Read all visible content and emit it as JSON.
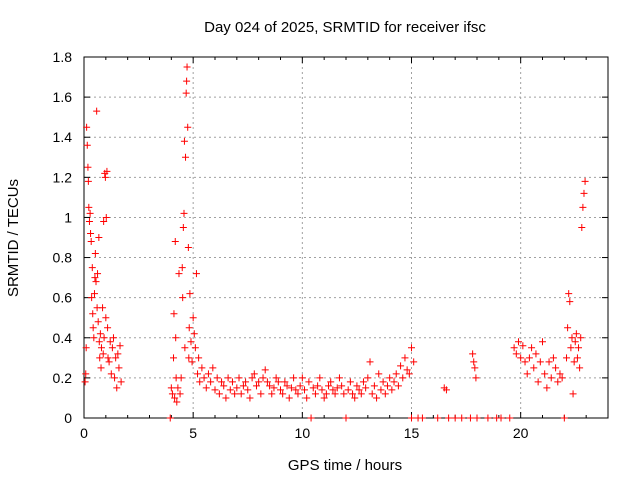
{
  "chart_data": {
    "type": "scatter",
    "title": "Day 024 of 2025, SRMTID for receiver ifsc",
    "xlabel": "GPS time / hours",
    "ylabel": "SRMTID / TECUs",
    "xlim": [
      0,
      24
    ],
    "ylim": [
      0,
      1.8
    ],
    "xticks": [
      0,
      5,
      10,
      15,
      20
    ],
    "xtick_labels": [
      "0",
      "5",
      "10",
      "15",
      "20"
    ],
    "yticks": [
      0,
      0.2,
      0.4,
      0.6,
      0.8,
      1,
      1.2,
      1.4,
      1.6,
      1.8
    ],
    "ytick_labels": [
      "0",
      "0.2",
      "0.4",
      "0.6",
      "0.8",
      "1",
      "1.2",
      "1.4",
      "1.6",
      "1.8"
    ],
    "grid": true,
    "marker": "+",
    "series": [
      {
        "name": "SRMTID",
        "color": "#ff0000",
        "points": [
          [
            0.05,
            0.18
          ],
          [
            0.08,
            0.22
          ],
          [
            0.1,
            0.35
          ],
          [
            0.12,
            1.45
          ],
          [
            0.15,
            1.36
          ],
          [
            0.18,
            1.25
          ],
          [
            0.2,
            1.18
          ],
          [
            0.22,
            1.05
          ],
          [
            0.25,
            0.98
          ],
          [
            0.28,
            1.02
          ],
          [
            0.3,
            0.92
          ],
          [
            0.33,
            0.88
          ],
          [
            0.35,
            0.6
          ],
          [
            0.38,
            0.75
          ],
          [
            0.4,
            0.52
          ],
          [
            0.42,
            0.45
          ],
          [
            0.45,
            0.4
          ],
          [
            0.48,
            0.62
          ],
          [
            0.5,
            0.7
          ],
          [
            0.52,
            0.82
          ],
          [
            0.55,
            0.68
          ],
          [
            0.58,
            1.53
          ],
          [
            0.6,
            0.55
          ],
          [
            0.62,
            0.72
          ],
          [
            0.65,
            0.48
          ],
          [
            0.68,
            0.9
          ],
          [
            0.7,
            0.38
          ],
          [
            0.72,
            0.3
          ],
          [
            0.75,
            0.42
          ],
          [
            0.78,
            0.25
          ],
          [
            0.8,
            0.35
          ],
          [
            0.85,
            0.55
          ],
          [
            0.88,
            0.32
          ],
          [
            0.9,
            0.98
          ],
          [
            0.92,
            0.4
          ],
          [
            0.95,
            1.22
          ],
          [
            0.98,
            1.2
          ],
          [
            1.0,
            0.5
          ],
          [
            1.02,
            1.0
          ],
          [
            1.05,
            1.23
          ],
          [
            1.08,
            0.45
          ],
          [
            1.1,
            0.3
          ],
          [
            1.15,
            0.28
          ],
          [
            1.2,
            0.38
          ],
          [
            1.25,
            0.22
          ],
          [
            1.3,
            0.35
          ],
          [
            1.35,
            0.4
          ],
          [
            1.4,
            0.2
          ],
          [
            1.45,
            0.3
          ],
          [
            1.5,
            0.15
          ],
          [
            1.55,
            0.32
          ],
          [
            1.6,
            0.25
          ],
          [
            1.65,
            0.36
          ],
          [
            1.7,
            0.18
          ],
          [
            3.95,
            0.0
          ],
          [
            4.0,
            0.15
          ],
          [
            4.05,
            0.12
          ],
          [
            4.1,
            0.3
          ],
          [
            4.12,
            0.52
          ],
          [
            4.15,
            0.1
          ],
          [
            4.18,
            0.88
          ],
          [
            4.2,
            0.4
          ],
          [
            4.22,
            0.2
          ],
          [
            4.25,
            0.08
          ],
          [
            4.3,
            0.15
          ],
          [
            4.35,
            0.72
          ],
          [
            4.4,
            0.12
          ],
          [
            4.45,
            0.2
          ],
          [
            4.5,
            0.75
          ],
          [
            4.52,
            0.6
          ],
          [
            4.55,
            0.95
          ],
          [
            4.58,
            1.02
          ],
          [
            4.6,
            1.38
          ],
          [
            4.62,
            0.35
          ],
          [
            4.65,
            1.3
          ],
          [
            4.68,
            1.62
          ],
          [
            4.7,
            1.68
          ],
          [
            4.72,
            1.75
          ],
          [
            4.75,
            1.45
          ],
          [
            4.78,
            0.85
          ],
          [
            4.8,
            0.3
          ],
          [
            4.82,
            0.45
          ],
          [
            4.85,
            0.62
          ],
          [
            4.9,
            0.38
          ],
          [
            4.95,
            0.28
          ],
          [
            5.0,
            0.5
          ],
          [
            5.05,
            0.42
          ],
          [
            5.1,
            0.35
          ],
          [
            5.15,
            0.72
          ],
          [
            5.2,
            0.22
          ],
          [
            5.25,
            0.3
          ],
          [
            5.3,
            0.18
          ],
          [
            5.4,
            0.25
          ],
          [
            5.5,
            0.2
          ],
          [
            5.6,
            0.15
          ],
          [
            5.7,
            0.22
          ],
          [
            5.8,
            0.18
          ],
          [
            5.9,
            0.25
          ],
          [
            6.0,
            0.14
          ],
          [
            6.1,
            0.2
          ],
          [
            6.2,
            0.12
          ],
          [
            6.3,
            0.18
          ],
          [
            6.4,
            0.16
          ],
          [
            6.5,
            0.1
          ],
          [
            6.6,
            0.2
          ],
          [
            6.7,
            0.14
          ],
          [
            6.8,
            0.18
          ],
          [
            6.9,
            0.12
          ],
          [
            7.0,
            0.15
          ],
          [
            7.1,
            0.2
          ],
          [
            7.2,
            0.12
          ],
          [
            7.3,
            0.16
          ],
          [
            7.4,
            0.18
          ],
          [
            7.5,
            0.14
          ],
          [
            7.6,
            0.1
          ],
          [
            7.7,
            0.2
          ],
          [
            7.8,
            0.22
          ],
          [
            7.9,
            0.16
          ],
          [
            8.0,
            0.18
          ],
          [
            8.1,
            0.12
          ],
          [
            8.2,
            0.2
          ],
          [
            8.3,
            0.24
          ],
          [
            8.4,
            0.18
          ],
          [
            8.5,
            0.16
          ],
          [
            8.6,
            0.12
          ],
          [
            8.7,
            0.15
          ],
          [
            8.8,
            0.2
          ],
          [
            8.9,
            0.18
          ],
          [
            9.0,
            0.14
          ],
          [
            9.1,
            0.12
          ],
          [
            9.2,
            0.18
          ],
          [
            9.3,
            0.16
          ],
          [
            9.4,
            0.1
          ],
          [
            9.5,
            0.15
          ],
          [
            9.6,
            0.2
          ],
          [
            9.7,
            0.14
          ],
          [
            9.8,
            0.12
          ],
          [
            9.9,
            0.16
          ],
          [
            10.0,
            0.2
          ],
          [
            10.1,
            0.14
          ],
          [
            10.2,
            0.1
          ],
          [
            10.3,
            0.18
          ],
          [
            10.4,
            0.0
          ],
          [
            10.5,
            0.15
          ],
          [
            10.6,
            0.12
          ],
          [
            10.7,
            0.16
          ],
          [
            10.8,
            0.2
          ],
          [
            10.9,
            0.14
          ],
          [
            11.0,
            0.1
          ],
          [
            11.1,
            0.12
          ],
          [
            11.2,
            0.16
          ],
          [
            11.3,
            0.18
          ],
          [
            11.4,
            0.14
          ],
          [
            11.5,
            0.12
          ],
          [
            11.6,
            0.15
          ],
          [
            11.7,
            0.2
          ],
          [
            11.8,
            0.16
          ],
          [
            11.9,
            0.12
          ],
          [
            12.0,
            0.0
          ],
          [
            12.1,
            0.14
          ],
          [
            12.2,
            0.18
          ],
          [
            12.3,
            0.12
          ],
          [
            12.4,
            0.1
          ],
          [
            12.5,
            0.16
          ],
          [
            12.6,
            0.14
          ],
          [
            12.7,
            0.12
          ],
          [
            12.8,
            0.18
          ],
          [
            12.9,
            0.15
          ],
          [
            13.0,
            0.2
          ],
          [
            13.1,
            0.28
          ],
          [
            13.2,
            0.12
          ],
          [
            13.3,
            0.16
          ],
          [
            13.4,
            0.1
          ],
          [
            13.5,
            0.22
          ],
          [
            13.6,
            0.14
          ],
          [
            13.7,
            0.18
          ],
          [
            13.8,
            0.12
          ],
          [
            13.9,
            0.16
          ],
          [
            14.0,
            0.2
          ],
          [
            14.1,
            0.14
          ],
          [
            14.2,
            0.18
          ],
          [
            14.3,
            0.22
          ],
          [
            14.4,
            0.16
          ],
          [
            14.5,
            0.26
          ],
          [
            14.6,
            0.2
          ],
          [
            14.7,
            0.3
          ],
          [
            14.8,
            0.24
          ],
          [
            14.9,
            0.22
          ],
          [
            15.0,
            0.35
          ],
          [
            15.1,
            0.28
          ],
          [
            15.0,
            0.0
          ],
          [
            15.3,
            0.0
          ],
          [
            15.5,
            0.0
          ],
          [
            16.2,
            0.0
          ],
          [
            16.5,
            0.15
          ],
          [
            16.6,
            0.14
          ],
          [
            16.7,
            0.0
          ],
          [
            17.0,
            0.0
          ],
          [
            17.3,
            0.0
          ],
          [
            17.7,
            0.0
          ],
          [
            17.8,
            0.32
          ],
          [
            17.85,
            0.28
          ],
          [
            17.9,
            0.25
          ],
          [
            17.95,
            0.2
          ],
          [
            18.0,
            0.0
          ],
          [
            18.5,
            0.0
          ],
          [
            18.9,
            0.0
          ],
          [
            19.1,
            0.0
          ],
          [
            19.5,
            0.0
          ],
          [
            19.7,
            0.35
          ],
          [
            19.8,
            0.32
          ],
          [
            19.9,
            0.38
          ],
          [
            20.0,
            0.3
          ],
          [
            20.1,
            0.36
          ],
          [
            20.2,
            0.28
          ],
          [
            20.3,
            0.22
          ],
          [
            20.4,
            0.3
          ],
          [
            20.5,
            0.35
          ],
          [
            20.6,
            0.25
          ],
          [
            20.7,
            0.32
          ],
          [
            20.8,
            0.18
          ],
          [
            20.9,
            0.28
          ],
          [
            21.0,
            0.38
          ],
          [
            21.1,
            0.22
          ],
          [
            21.2,
            0.15
          ],
          [
            21.3,
            0.28
          ],
          [
            21.4,
            0.2
          ],
          [
            21.5,
            0.3
          ],
          [
            21.6,
            0.25
          ],
          [
            21.7,
            0.18
          ],
          [
            21.8,
            0.22
          ],
          [
            21.9,
            0.2
          ],
          [
            22.0,
            0.0
          ],
          [
            22.1,
            0.3
          ],
          [
            22.15,
            0.45
          ],
          [
            22.2,
            0.62
          ],
          [
            22.25,
            0.58
          ],
          [
            22.3,
            0.35
          ],
          [
            22.35,
            0.4
          ],
          [
            22.4,
            0.12
          ],
          [
            22.45,
            0.28
          ],
          [
            22.5,
            0.38
          ],
          [
            22.55,
            0.42
          ],
          [
            22.6,
            0.3
          ],
          [
            22.65,
            0.35
          ],
          [
            22.7,
            0.25
          ],
          [
            22.75,
            0.4
          ],
          [
            22.8,
            0.95
          ],
          [
            22.85,
            1.05
          ],
          [
            22.9,
            1.12
          ],
          [
            22.95,
            1.18
          ]
        ]
      }
    ]
  }
}
